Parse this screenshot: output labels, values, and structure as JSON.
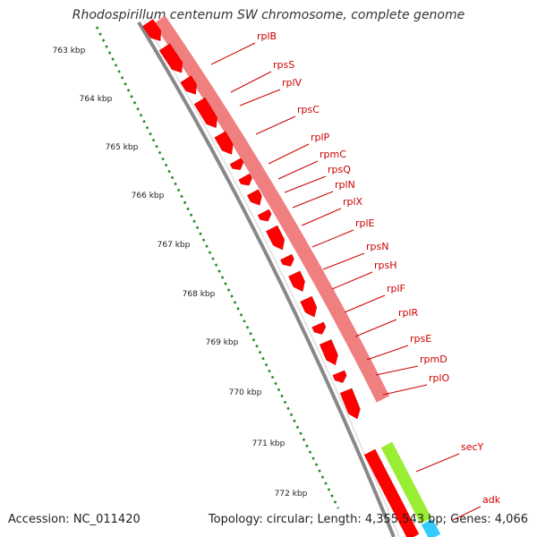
{
  "title": "Rhodospirillum centenum SW chromosome, complete genome",
  "footer": {
    "accession": "Accession: NC_011420",
    "stats": "Topology: circular; Length: 4,355,543 bp; Genes: 4,066"
  },
  "kbp_labels": [
    "763 kbp",
    "764 kbp",
    "765 kbp",
    "766 kbp",
    "767 kbp",
    "768 kbp",
    "769 kbp",
    "770 kbp",
    "771 kbp",
    "772 kbp"
  ],
  "genes": [
    {
      "name": "rplB",
      "color": "#ff0000"
    },
    {
      "name": "rpsS",
      "color": "#ff0000"
    },
    {
      "name": "rplV",
      "color": "#ff0000"
    },
    {
      "name": "rpsC",
      "color": "#ff0000"
    },
    {
      "name": "rplP",
      "color": "#ff0000"
    },
    {
      "name": "rpmC",
      "color": "#ff0000"
    },
    {
      "name": "rpsQ",
      "color": "#ff0000"
    },
    {
      "name": "rplN",
      "color": "#ff0000"
    },
    {
      "name": "rplX",
      "color": "#ff0000"
    },
    {
      "name": "rplE",
      "color": "#ff0000"
    },
    {
      "name": "rpsN",
      "color": "#ff0000"
    },
    {
      "name": "rpsH",
      "color": "#ff0000"
    },
    {
      "name": "rplF",
      "color": "#ff0000"
    },
    {
      "name": "rplR",
      "color": "#ff0000"
    },
    {
      "name": "rpsE",
      "color": "#ff0000"
    },
    {
      "name": "rpmD",
      "color": "#ff0000"
    },
    {
      "name": "rplO",
      "color": "#ff0000"
    },
    {
      "name": "secY",
      "color": "#99ee33"
    },
    {
      "name": "adk",
      "color": "#33ccff"
    }
  ],
  "colors": {
    "ribosomal": "#ff0000",
    "cog_ribosomal": "#f08080",
    "secY": "#99ee33",
    "adk": "#33ccff",
    "backbone": "#888888",
    "tick_dots": "#228b22"
  }
}
